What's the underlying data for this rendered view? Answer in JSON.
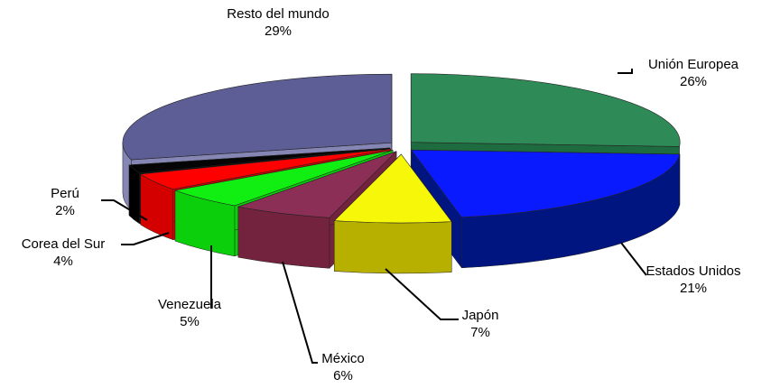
{
  "chart_data": {
    "type": "pie",
    "style": "3d-exploded",
    "title": "",
    "legend": "none",
    "unit": "%",
    "slices": [
      {
        "label": "Unión Europea",
        "value": 26,
        "value_label": "26%",
        "color": "#2e8b57",
        "side_color": "#1d6b3f"
      },
      {
        "label": "Estados Unidos",
        "value": 21,
        "value_label": "21%",
        "color": "#0a1aff",
        "side_color": "#001580"
      },
      {
        "label": "Japón",
        "value": 7,
        "value_label": "7%",
        "color": "#f7f70a",
        "side_color": "#b8b000"
      },
      {
        "label": "México",
        "value": 6,
        "value_label": "6%",
        "color": "#8b2f57",
        "side_color": "#74233f"
      },
      {
        "label": "Venezuela",
        "value": 5,
        "value_label": "5%",
        "color": "#11ee11",
        "side_color": "#0ccf0c"
      },
      {
        "label": "Corea del Sur",
        "value": 4,
        "value_label": "4%",
        "color": "#ff0000",
        "side_color": "#d40000"
      },
      {
        "label": "Perú",
        "value": 2,
        "value_label": "2%",
        "color": "#050505",
        "side_color": "#000000"
      },
      {
        "label": "Resto del mundo",
        "value": 29,
        "value_label": "29%",
        "color": "#5e5e96",
        "side_color": "#8686b4"
      }
    ]
  }
}
